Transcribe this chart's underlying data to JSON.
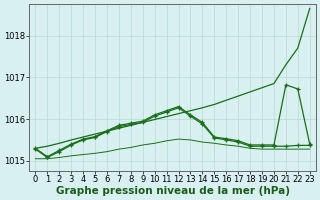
{
  "xlabel_label": "Graphe pression niveau de la mer (hPa)",
  "x": [
    0,
    1,
    2,
    3,
    4,
    5,
    6,
    7,
    8,
    9,
    10,
    11,
    12,
    13,
    14,
    15,
    16,
    17,
    18,
    19,
    20,
    21,
    22,
    23
  ],
  "s1": [
    1015.3,
    1015.35,
    1015.42,
    1015.5,
    1015.57,
    1015.64,
    1015.71,
    1015.78,
    1015.85,
    1015.92,
    1015.99,
    1016.06,
    1016.13,
    1016.2,
    1016.27,
    1016.35,
    1016.45,
    1016.55,
    1016.65,
    1016.75,
    1016.85,
    1017.3,
    1017.7,
    1018.65
  ],
  "s2": [
    1015.3,
    1015.1,
    1015.25,
    1015.4,
    1015.52,
    1015.58,
    1015.72,
    1015.85,
    1015.9,
    1015.95,
    1016.1,
    1016.2,
    1016.3,
    1016.1,
    1015.92,
    1015.57,
    1015.53,
    1015.48,
    1015.38,
    1015.38,
    1015.38,
    1016.82,
    1016.72,
    1015.4
  ],
  "s3": [
    1015.28,
    1015.08,
    1015.22,
    1015.38,
    1015.5,
    1015.56,
    1015.7,
    1015.82,
    1015.87,
    1015.92,
    1016.07,
    1016.17,
    1016.27,
    1016.07,
    1015.88,
    1015.55,
    1015.5,
    1015.45,
    1015.35,
    1015.35,
    1015.35,
    1015.35,
    1015.37,
    1015.37
  ],
  "s4": [
    1015.05,
    1015.05,
    1015.08,
    1015.12,
    1015.15,
    1015.18,
    1015.22,
    1015.28,
    1015.32,
    1015.38,
    1015.42,
    1015.48,
    1015.52,
    1015.5,
    1015.45,
    1015.42,
    1015.38,
    1015.35,
    1015.3,
    1015.28,
    1015.28,
    1015.28,
    1015.28,
    1015.28
  ],
  "ylim": [
    1014.75,
    1018.75
  ],
  "yticks": [
    1015,
    1016,
    1017,
    1018
  ],
  "bg_color": "#d8f0f0",
  "grid_color": "#b8d8d8",
  "line_color": "#1a6e1a",
  "label_color": "#1a5c1a",
  "label_fontsize": 7.5,
  "tick_fontsize": 6.0
}
